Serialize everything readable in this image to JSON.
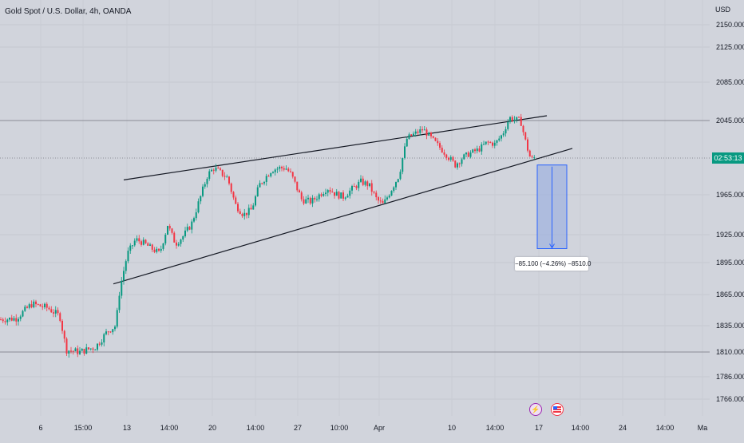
{
  "header": {
    "title": "Gold Spot / U.S. Dollar, 4h, OANDA",
    "currency": "USD"
  },
  "price_axis": {
    "last_price_label": "02:53:13"
  },
  "measure": {
    "label": "−85.100 (−4.26%) −8510.0"
  },
  "colors": {
    "background": "#d1d4dc",
    "up": "#089981",
    "down": "#f23645",
    "trendline": "#131722",
    "measure_fill": "#9fb2de",
    "measure_line": "#2962ff"
  },
  "icons": {
    "event_1": "lightning-icon",
    "event_2": "us-flag-icon"
  },
  "chart_data": {
    "type": "candlestick",
    "title": "Gold Spot / U.S. Dollar, 4h, OANDA",
    "ylabel": "USD",
    "ylim": [
      1752,
      2162
    ],
    "y_ticks": [
      2150,
      2125,
      2085,
      2045,
      1965,
      1925,
      1895,
      1865,
      1835,
      1810,
      1786,
      1766
    ],
    "y_tick_labels": [
      "2150.000",
      "2125.000",
      "2085.000",
      "2045.000",
      "1965.000",
      "1925.000",
      "1895.000",
      "1865.000",
      "1835.000",
      "1810.000",
      "1786.000",
      "1766.000"
    ],
    "x_tick_labels": [
      "6",
      "15:00",
      "13",
      "14:00",
      "20",
      "14:00",
      "27",
      "10:00",
      "Apr",
      "10",
      "14:00",
      "17",
      "14:00",
      "24",
      "14:00",
      "Ma"
    ],
    "grid": true,
    "horizontal_levels": [
      2045,
      2002,
      1810
    ],
    "last_price": 2002,
    "price_path": [
      [
        0,
        1841
      ],
      [
        20,
        1842
      ],
      [
        40,
        1856
      ],
      [
        60,
        1852
      ],
      [
        75,
        1844
      ],
      [
        83,
        1812
      ],
      [
        100,
        1810
      ],
      [
        120,
        1815
      ],
      [
        135,
        1830
      ],
      [
        145,
        1835
      ],
      [
        150,
        1870
      ],
      [
        160,
        1905
      ],
      [
        170,
        1920
      ],
      [
        180,
        1916
      ],
      [
        190,
        1910
      ],
      [
        200,
        1905
      ],
      [
        210,
        1935
      ],
      [
        220,
        1915
      ],
      [
        230,
        1924
      ],
      [
        240,
        1936
      ],
      [
        250,
        1960
      ],
      [
        260,
        1985
      ],
      [
        268,
        1992
      ],
      [
        275,
        1988
      ],
      [
        285,
        1982
      ],
      [
        295,
        1955
      ],
      [
        305,
        1945
      ],
      [
        315,
        1950
      ],
      [
        325,
        1975
      ],
      [
        340,
        1990
      ],
      [
        350,
        1992
      ],
      [
        358,
        1992
      ],
      [
        365,
        1985
      ],
      [
        378,
        1960
      ],
      [
        390,
        1958
      ],
      [
        400,
        1965
      ],
      [
        410,
        1972
      ],
      [
        420,
        1966
      ],
      [
        430,
        1963
      ],
      [
        440,
        1970
      ],
      [
        452,
        1978
      ],
      [
        462,
        1975
      ],
      [
        472,
        1960
      ],
      [
        480,
        1955
      ],
      [
        490,
        1970
      ],
      [
        500,
        1985
      ],
      [
        510,
        2025
      ],
      [
        520,
        2030
      ],
      [
        530,
        2035
      ],
      [
        540,
        2025
      ],
      [
        550,
        2015
      ],
      [
        560,
        2005
      ],
      [
        570,
        1995
      ],
      [
        580,
        2003
      ],
      [
        590,
        2008
      ],
      [
        600,
        2012
      ],
      [
        610,
        2020
      ],
      [
        620,
        2018
      ],
      [
        630,
        2030
      ],
      [
        638,
        2048
      ],
      [
        645,
        2046
      ],
      [
        652,
        2045
      ],
      [
        660,
        2015
      ],
      [
        665,
        2000
      ],
      [
        670,
        2003
      ]
    ],
    "trendlines": [
      {
        "name": "upper",
        "from": [
          155,
          1980
        ],
        "to": [
          685,
          2050
        ]
      },
      {
        "name": "lower",
        "from": [
          142,
          1875
        ],
        "to": [
          717,
          2013
        ]
      }
    ],
    "measurement": {
      "from_price": 1995,
      "to_price": 1910,
      "change": -85.1,
      "change_pct": -4.26,
      "ticks": -8510.0
    }
  }
}
